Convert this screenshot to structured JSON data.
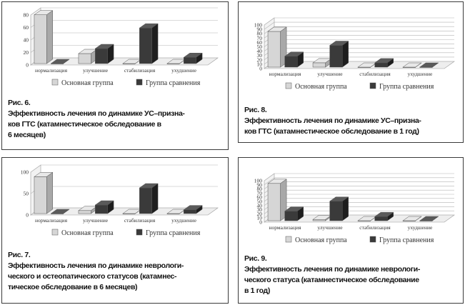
{
  "colors": {
    "main_front": "#d6d6d6",
    "main_top": "#e8e8e8",
    "main_side": "#a8a8a8",
    "comp_front": "#3a3a3a",
    "comp_top": "#5a5a5a",
    "comp_side": "#1e1e1e"
  },
  "chart_data": [
    {
      "id": "p6",
      "type": "bar",
      "categories": [
        "нормализация",
        "улучшение",
        "стабилизация",
        "ухудшение"
      ],
      "ylim": [
        0,
        80
      ],
      "yticks": [
        "0",
        "20",
        "40",
        "60",
        "80"
      ],
      "series": [
        {
          "name": "Основная группа",
          "values": [
            78,
            16,
            0,
            0
          ]
        },
        {
          "name": "Группа сравнения",
          "values": [
            0,
            24,
            57,
            10
          ]
        }
      ]
    },
    {
      "id": "p8",
      "type": "bar",
      "categories": [
        "нормализация",
        "улучшение",
        "стабилизация",
        "ухудшение"
      ],
      "ylim": [
        0,
        100
      ],
      "yticks": [
        "0",
        "10",
        "20",
        "30",
        "40",
        "50",
        "60",
        "70",
        "80",
        "90",
        "100"
      ],
      "series": [
        {
          "name": "Основная группа",
          "values": [
            82,
            10,
            0,
            0
          ]
        },
        {
          "name": "Группа сравнения",
          "values": [
            25,
            50,
            10,
            0
          ]
        }
      ]
    },
    {
      "id": "p7",
      "type": "bar",
      "categories": [
        "нормализация",
        "улучшение",
        "стабилизация",
        "ухудшение"
      ],
      "ylim": [
        0,
        100
      ],
      "yticks": [
        "0",
        "50",
        "100"
      ],
      "series": [
        {
          "name": "Основная группа",
          "values": [
            86,
            7,
            0,
            0
          ]
        },
        {
          "name": "Группа сравнения",
          "values": [
            0,
            20,
            60,
            9
          ]
        }
      ]
    },
    {
      "id": "p9",
      "type": "bar",
      "categories": [
        "нормализация",
        "улучшение",
        "стабилизация",
        "ухудшение"
      ],
      "ylim": [
        0,
        100
      ],
      "yticks": [
        "0",
        "10",
        "20",
        "30",
        "40",
        "50",
        "60",
        "70",
        "80",
        "90",
        "100"
      ],
      "series": [
        {
          "name": "Основная группа",
          "values": [
            90,
            3,
            0,
            0
          ]
        },
        {
          "name": "Группа сравнения",
          "values": [
            23,
            47,
            10,
            0
          ]
        }
      ]
    }
  ],
  "captions": {
    "p6": {
      "label": "Рис. 6.",
      "lines": [
        "Эффективность лечения по динамике УС–призна-",
        "ков ГТС (катамнестическое обследование в",
        "6 месяцев)"
      ]
    },
    "p8": {
      "label": "Рис. 8.",
      "lines": [
        "Эффективность лечения по динамике УС–призна-",
        "ков ГТС (катамнестическое обследование в 1 год)"
      ]
    },
    "p7": {
      "label": "Рис. 7.",
      "lines": [
        "Эффективность лечения по динамике невроло­ги-",
        "ческого и остеопатического статусов (катамнес-",
        "тическое обследование в 6 месяцев)"
      ]
    },
    "p9": {
      "label": "Рис. 9.",
      "lines": [
        "Эффективность лечения по динамике неврологи-",
        "ческого статуса (катамнестическое обследование",
        "в 1 год)"
      ]
    }
  }
}
